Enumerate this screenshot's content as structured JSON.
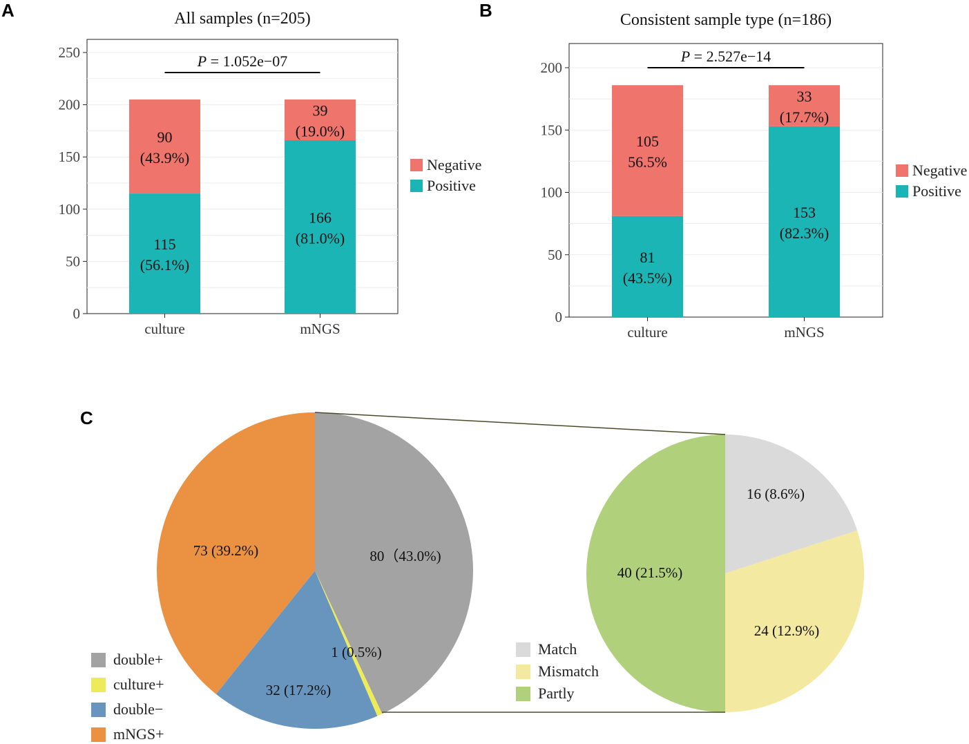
{
  "chart_data": [
    {
      "id": "A",
      "type": "bar",
      "stacked": true,
      "panel_label": "A",
      "title": "All samples (n=205)",
      "categories": [
        "culture",
        "mNGS"
      ],
      "ylim": [
        0,
        250
      ],
      "yticks": [
        0,
        50,
        100,
        150,
        200,
        250
      ],
      "grid": true,
      "series": [
        {
          "name": "Positive",
          "color": "#1bb5b5",
          "values": [
            115,
            166
          ],
          "labels": [
            [
              "115",
              "(56.1%)"
            ],
            [
              "166",
              "(81.0%)"
            ]
          ]
        },
        {
          "name": "Negative",
          "color": "#ee746c",
          "values": [
            90,
            39
          ],
          "labels": [
            [
              "90",
              "(43.9%)"
            ],
            [
              "39",
              "(19.0%)"
            ]
          ]
        }
      ],
      "p_label": {
        "italic": "P",
        "rest": " = 1.052e−07"
      },
      "legend": {
        "position": "right",
        "items": [
          "Negative",
          "Positive"
        ]
      }
    },
    {
      "id": "B",
      "type": "bar",
      "stacked": true,
      "panel_label": "B",
      "title": "Consistent sample type (n=186)",
      "categories": [
        "culture",
        "mNGS"
      ],
      "ylim": [
        0,
        220
      ],
      "yticks": [
        0,
        50,
        100,
        150,
        200
      ],
      "grid": true,
      "series": [
        {
          "name": "Positive",
          "color": "#1bb5b5",
          "values": [
            81,
            153
          ],
          "labels": [
            [
              "81",
              "(43.5%)"
            ],
            [
              "153",
              "(82.3%)"
            ]
          ]
        },
        {
          "name": "Negative",
          "color": "#ee746c",
          "values": [
            105,
            33
          ],
          "labels": [
            [
              "105",
              "56.5%"
            ],
            [
              "33",
              "(17.7%)"
            ]
          ]
        }
      ],
      "p_label": {
        "italic": "P",
        "rest": " = 2.527e−14"
      },
      "legend": {
        "position": "right",
        "items": [
          "Negative",
          "Positive"
        ]
      }
    },
    {
      "id": "C1",
      "type": "pie",
      "panel_label": "C",
      "slices": [
        {
          "name": "double+",
          "value": 80,
          "color": "#a3a3a3",
          "label": "80（43.0%)"
        },
        {
          "name": "culture+",
          "value": 1,
          "color": "#eeeb5b",
          "label": "1 (0.5%)"
        },
        {
          "name": "double−",
          "value": 32,
          "color": "#6895be",
          "label": "32 (17.2%)"
        },
        {
          "name": "mNGS+",
          "value": 73,
          "color": "#ea9142",
          "label": "73 (39.2%)"
        }
      ],
      "legend": {
        "position": "bottom-left",
        "items": [
          "double+",
          "culture+",
          "double−",
          "mNGS+"
        ]
      }
    },
    {
      "id": "C2",
      "type": "pie",
      "slices": [
        {
          "name": "Match",
          "value": 16,
          "color": "#dadada",
          "label": "16 (8.6%)"
        },
        {
          "name": "Mismatch",
          "value": 24,
          "color": "#f4e9a1",
          "label": "24 (12.9%)"
        },
        {
          "name": "Partly",
          "value": 40,
          "color": "#b1d07b",
          "label": "40 (21.5%)"
        }
      ],
      "legend": {
        "position": "bottom-left",
        "items": [
          "Match",
          "Mismatch",
          "Partly"
        ]
      }
    }
  ]
}
